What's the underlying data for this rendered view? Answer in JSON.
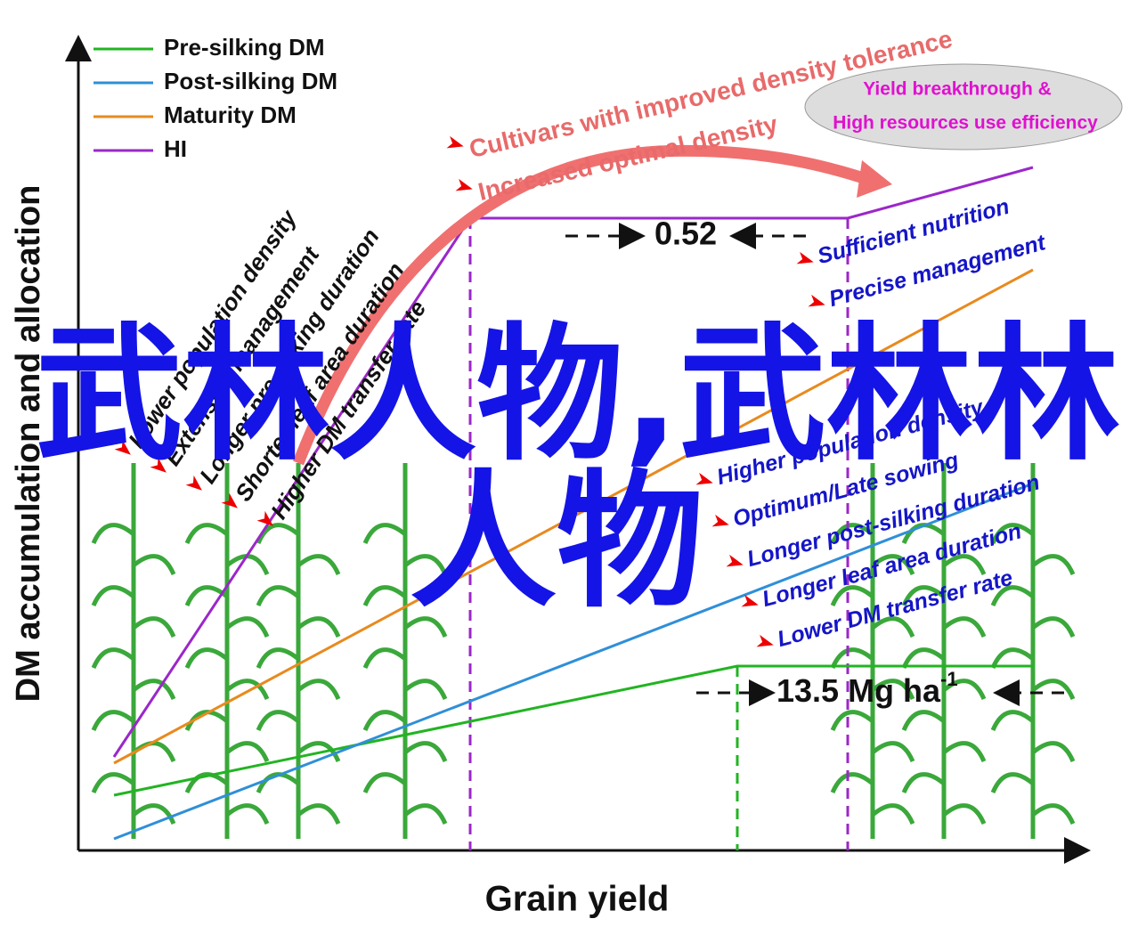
{
  "axes": {
    "x_label": "Grain yield",
    "y_label": "DM accumulation and allocation"
  },
  "legend": [
    {
      "label": "Pre-silking DM",
      "color": "#22b422"
    },
    {
      "label": "Post-silking DM",
      "color": "#2f8fd8"
    },
    {
      "label": "Maturity DM",
      "color": "#e88a1e"
    },
    {
      "label": "HI",
      "color": "#9b27c9"
    }
  ],
  "left_notes": [
    "Lower population density",
    "Extensive management",
    "Longer pre-silking duration",
    "Shorter leaf area duration",
    "Higher DM transfer rate"
  ],
  "top_notes": [
    "Cultivars with improved density tolerance",
    "Increased optimal density"
  ],
  "ellipse": [
    "Yield breakthrough &",
    "High resources use efficiency"
  ],
  "hi_value": "0.52",
  "yield_value": {
    "text": "13.5 Mg ha",
    "superscript": "-1"
  },
  "right_notes": [
    "Sufficient nutrition",
    "Precise management",
    "Higher population density",
    "Optimum/Late sowing",
    "Longer  post-silking duration",
    "Longer leaf area duration",
    "Lower DM transfer rate"
  ],
  "overlay": [
    "武林人物,武林林",
    "人物"
  ]
}
